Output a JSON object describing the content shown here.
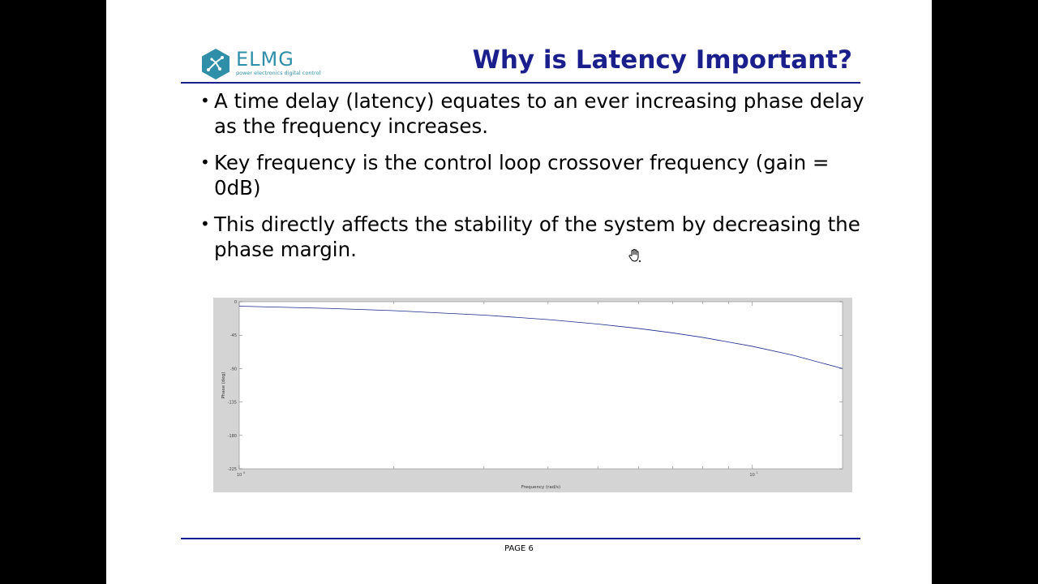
{
  "logo": {
    "name": "ELMG",
    "tagline": "power electronics digital control",
    "color": "#2f8fa8"
  },
  "slide": {
    "title": "Why is Latency Important?",
    "accent_color": "#1a1f8c",
    "bullets": [
      {
        "text": "A time delay (latency) equates to an ever increasing phase delay as the frequency increases."
      },
      {
        "text": "Key frequency is the control loop crossover frequency (gain = 0dB)"
      },
      {
        "text": "This directly affects the stability of the system by decreasing the phase margin."
      }
    ],
    "page_label": "PAGE 6"
  },
  "chart_data": {
    "type": "line",
    "xlabel": "Frequency (rad/s)",
    "ylabel": "Phase (deg)",
    "x_scale": "log",
    "xlim": [
      1,
      15
    ],
    "ylim": [
      -225,
      0
    ],
    "yticks": [
      "0",
      "-45",
      "-90",
      "-135",
      "-180",
      "-225"
    ],
    "xticks": [
      {
        "base": "10",
        "exp": "0",
        "value": 1
      },
      {
        "base": "10",
        "exp": "1",
        "value": 10
      }
    ],
    "grid": false,
    "series": [
      {
        "color": "#1a2a8c",
        "x": [
          1,
          1.5,
          2,
          3,
          4,
          5,
          6,
          7,
          8,
          10,
          12,
          15
        ],
        "y": [
          -6,
          -9,
          -12,
          -18,
          -24,
          -30,
          -36,
          -42,
          -48,
          -60,
          -72,
          -90
        ]
      }
    ]
  }
}
